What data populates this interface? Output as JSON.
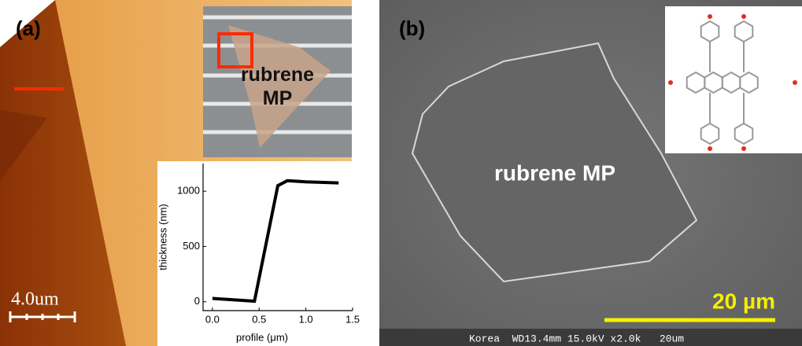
{
  "panel_a": {
    "label": "(a)",
    "scale_bar": "4.0um",
    "optical_label": "rubrene MP",
    "profile": {
      "type": "line",
      "x_label": "profile (μm)",
      "y_label": "thickness (nm)",
      "x": [
        0.0,
        0.45,
        0.7,
        0.8,
        1.0,
        1.35
      ],
      "y": [
        30,
        5,
        1050,
        1095,
        1085,
        1075
      ],
      "color": "#000000",
      "xlim": [
        -0.1,
        1.5
      ],
      "ylim": [
        -80,
        1250
      ],
      "xticks": [
        {
          "value": 0,
          "label": "0.0"
        },
        0.5,
        {
          "value": 1,
          "label": "1.0"
        },
        1.5
      ],
      "yticks": [
        0,
        500,
        1000
      ]
    }
  },
  "panel_b": {
    "label": "(b)",
    "particle_label": "rubrene MP",
    "scale_bar": "20 µm",
    "footer": "Korea  WD13.4mm 15.0kV x2.0k   20um"
  }
}
